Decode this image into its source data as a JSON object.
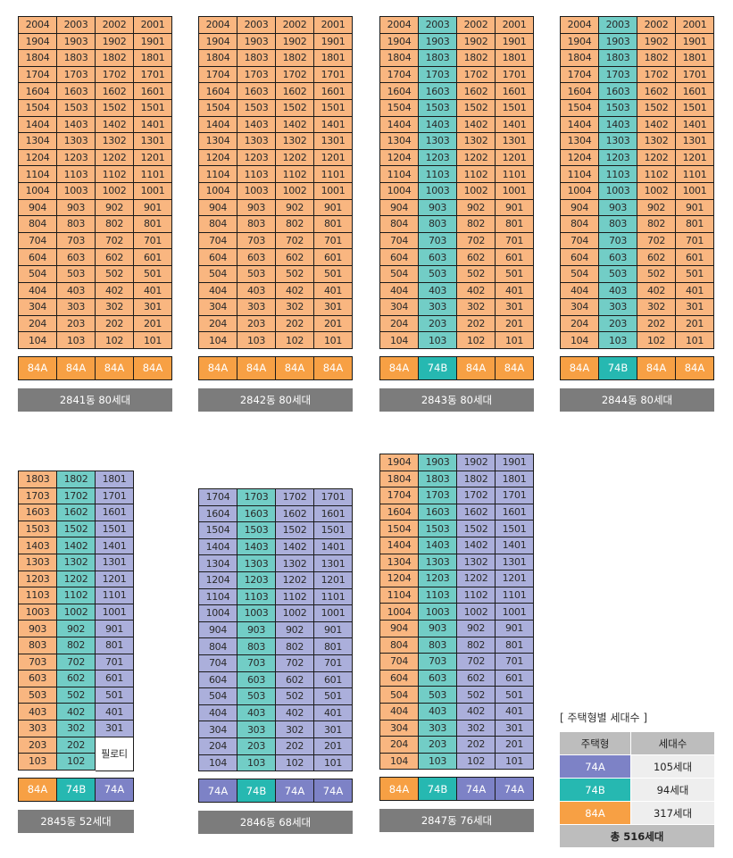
{
  "buildings": [
    {
      "name": "2841동 80세대",
      "top_floor": 20,
      "cols": [
        "84A",
        "84A",
        "84A",
        "84A"
      ],
      "units": [
        "04",
        "03",
        "02",
        "01"
      ],
      "types": [
        "84A",
        "84A",
        "84A",
        "84A"
      ],
      "empty": [],
      "special": []
    },
    {
      "name": "2842동 80세대",
      "top_floor": 20,
      "cols": [
        "84A",
        "84A",
        "84A",
        "84A"
      ],
      "units": [
        "04",
        "03",
        "02",
        "01"
      ],
      "types": [
        "84A",
        "84A",
        "84A",
        "84A"
      ],
      "empty": [],
      "special": []
    },
    {
      "name": "2843동 80세대",
      "top_floor": 20,
      "cols": [
        "84A",
        "74B",
        "84A",
        "84A"
      ],
      "units": [
        "04",
        "03",
        "02",
        "01"
      ],
      "types": [
        "84A",
        "74B",
        "84A",
        "84A"
      ],
      "empty": [],
      "special": []
    },
    {
      "name": "2844동 80세대",
      "top_floor": 20,
      "cols": [
        "84A",
        "74B",
        "84A",
        "84A"
      ],
      "units": [
        "04",
        "03",
        "02",
        "01"
      ],
      "types": [
        "84A",
        "74B",
        "84A",
        "84A"
      ],
      "empty": [],
      "special": []
    },
    {
      "name": "2845동 52세대",
      "top_floor": 18,
      "cols": [
        "84A",
        "74B",
        "74A"
      ],
      "units": [
        "03",
        "02",
        "01"
      ],
      "types": [
        "84A",
        "74B",
        "74A"
      ],
      "empty": [],
      "special": [
        {
          "col": 2,
          "floors": [
            1,
            2
          ],
          "text": "필로티"
        }
      ]
    },
    {
      "name": "2846동 68세대",
      "top_floor": 17,
      "cols": [
        "74A",
        "74B",
        "74A",
        "74A"
      ],
      "units": [
        "04",
        "03",
        "02",
        "01"
      ],
      "types": [
        "74A",
        "74B",
        "74A",
        "74A"
      ],
      "empty": [],
      "special": []
    },
    {
      "name": "2847동 76세대",
      "top_floor": 19,
      "cols": [
        "84A",
        "74B",
        "74A",
        "74A"
      ],
      "units": [
        "04",
        "03",
        "02",
        "01"
      ],
      "types": [
        "84A",
        "74B",
        "74A",
        "74A"
      ],
      "empty": [],
      "special": []
    }
  ],
  "legend": {
    "title": "[ 주택형별 세대수 ]",
    "header": [
      "주택형",
      "세대수"
    ],
    "rows": [
      {
        "type": "74A",
        "count": "105세대"
      },
      {
        "type": "74B",
        "count": "94세대"
      },
      {
        "type": "84A",
        "count": "317세대"
      }
    ],
    "total": "총 516세대"
  },
  "colors": {
    "84A_light": "#f9b680",
    "74B_light": "#72cdc6",
    "74A_light": "#abafdb",
    "84A": "#f7a044",
    "74B": "#26b8b1",
    "74A": "#7d82c6",
    "label_bg": "#7c7c7c"
  }
}
